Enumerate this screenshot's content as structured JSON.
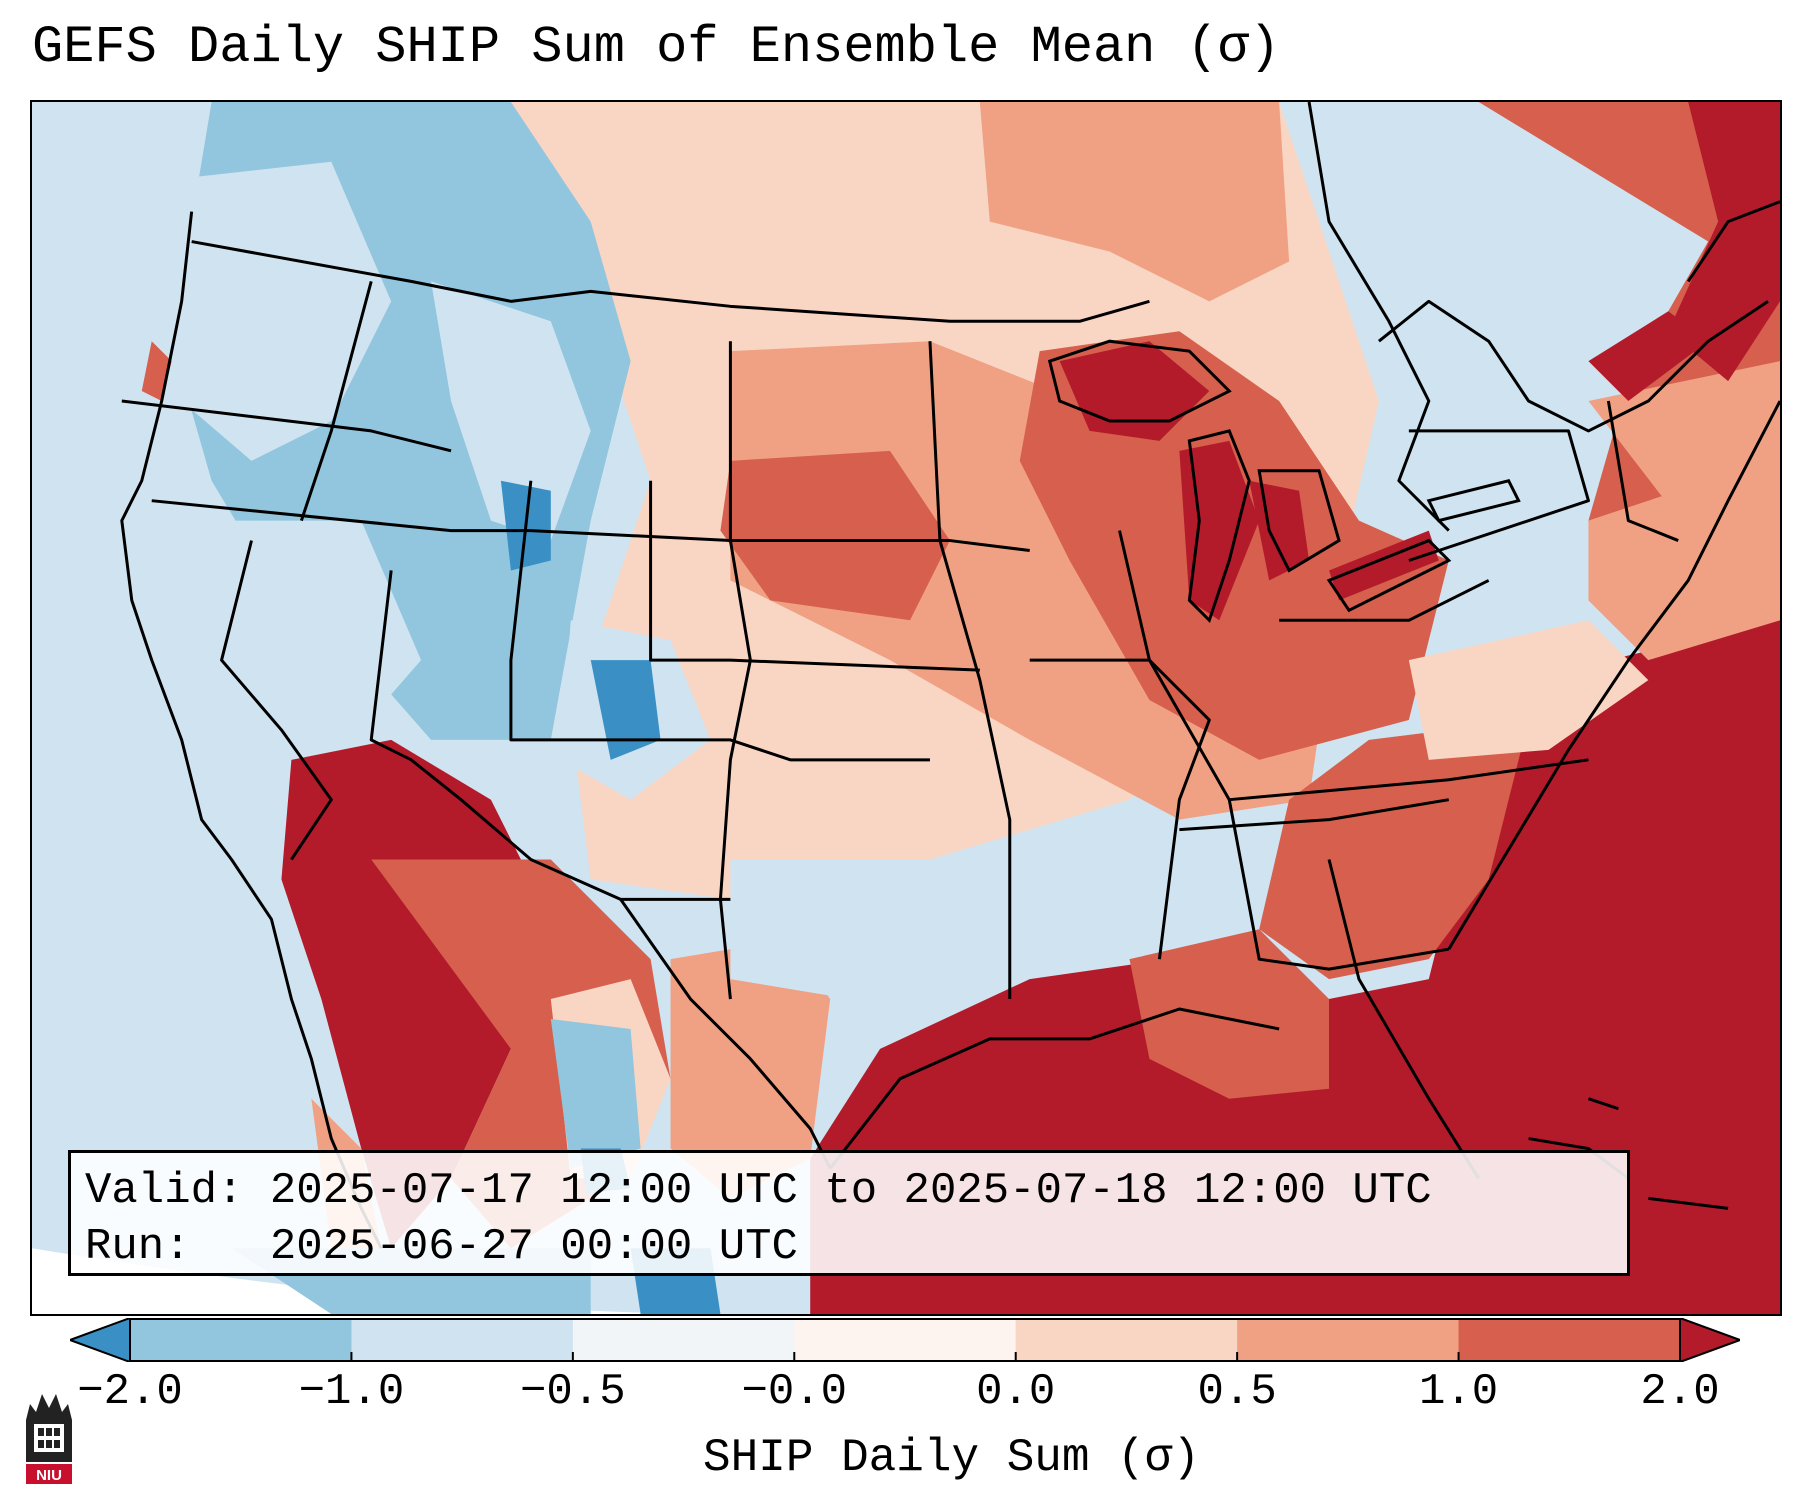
{
  "title": "GEFS Daily SHIP Sum of Ensemble Mean (σ)",
  "info": {
    "valid_label": "Valid:",
    "valid_value": "2025-07-17 12:00 UTC to 2025-07-18 12:00 UTC",
    "run_label": "Run:",
    "run_value": "2025-06-27 00:00 UTC"
  },
  "colorbar": {
    "title": "SHIP Daily Sum (σ)",
    "ticks": [
      "−2.0",
      "−1.0",
      "−0.5",
      "−0.0",
      "0.0",
      "0.5",
      "1.0",
      "2.0"
    ],
    "colors": [
      "#3a8fc4",
      "#92c5de",
      "#cfe4f0",
      "#f2f5f8",
      "#fdf3ef",
      "#f9d6c3",
      "#f0a184",
      "#d6604d",
      "#b31b2b"
    ],
    "extend": "both"
  },
  "logo": {
    "text": "NIU",
    "colors": {
      "tower": "#222222",
      "badge": "#c8102e"
    }
  }
}
